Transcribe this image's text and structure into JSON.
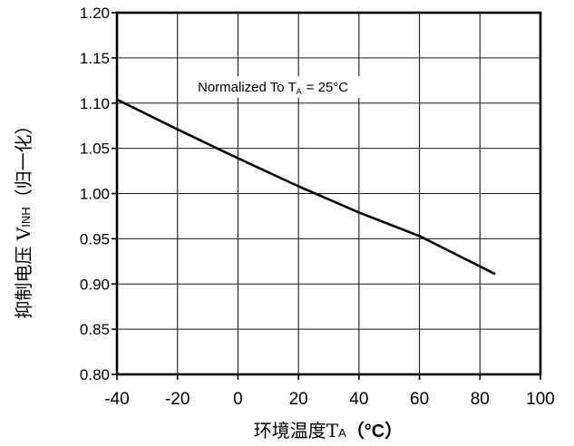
{
  "chart_data": {
    "type": "line",
    "title": "",
    "xlabel": {
      "text": "环境温度T",
      "sub": "A",
      "suffix": "（°C）"
    },
    "ylabel": {
      "text": "抑制电压 V",
      "sub": "INH",
      "suffix": "（归一化）"
    },
    "annotation": {
      "text": "Normalized To T",
      "sub": "A",
      "suffix": "= 25°C"
    },
    "x_tick_labels": [
      "-40",
      "-20",
      "0",
      "20",
      "40",
      "60",
      "80",
      "100"
    ],
    "y_tick_labels": [
      "0.80",
      "0.85",
      "0.90",
      "0.95",
      "1.00",
      "1.05",
      "1.10",
      "1.15",
      "1.20"
    ],
    "xlim": [
      -40,
      100
    ],
    "ylim": [
      0.8,
      1.2
    ],
    "grid": true,
    "legend": "none",
    "series": [
      {
        "color": "#000000",
        "x": [
          -40,
          -20,
          0,
          20,
          40,
          60,
          85
        ],
        "y": [
          1.104,
          1.071,
          1.039,
          1.008,
          0.979,
          0.953,
          0.911
        ]
      }
    ]
  }
}
